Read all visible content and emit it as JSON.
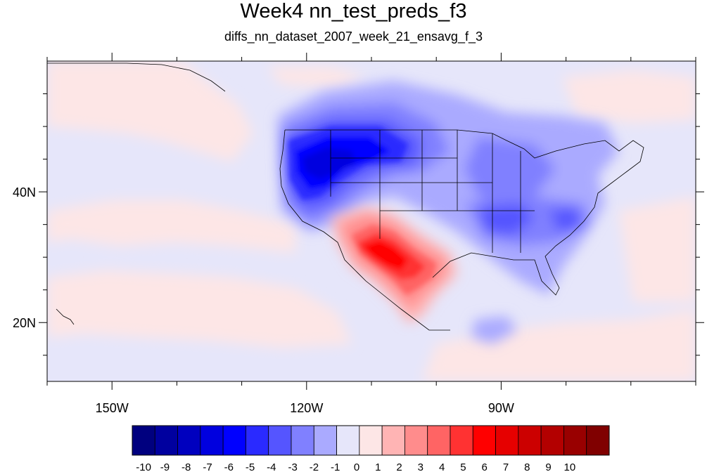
{
  "title": "Week4 nn_test_preds_f3",
  "subtitle": "diffs_nn_dataset_2007_week_21_ensavg_f_3",
  "map": {
    "lon_range": [
      -160,
      -60
    ],
    "lat_range": [
      11,
      60
    ],
    "lon_labels": [
      {
        "lon": -150,
        "text": "150W"
      },
      {
        "lon": -120,
        "text": "120W"
      },
      {
        "lon": -90,
        "text": "90W"
      }
    ],
    "lat_labels": [
      {
        "lat": 40,
        "text": "40N"
      },
      {
        "lat": 20,
        "text": "20N"
      }
    ],
    "background_color": "#e6e6fa",
    "ocean_warm_color": "#fde6e6"
  },
  "colorbar": {
    "labels": [
      "-10",
      "-9",
      "-8",
      "-7",
      "-6",
      "-5",
      "-4",
      "-3",
      "-2",
      "-1",
      "0",
      "1",
      "2",
      "3",
      "4",
      "5",
      "6",
      "7",
      "8",
      "9",
      "10"
    ],
    "colors": [
      "#00007f",
      "#00009f",
      "#0000bf",
      "#0000df",
      "#0000ff",
      "#2a2aff",
      "#5555ff",
      "#8080ff",
      "#aaaaff",
      "#e6e6fa",
      "#fde6e6",
      "#ffb4b4",
      "#ff8c8c",
      "#ff6464",
      "#ff3232",
      "#ff0000",
      "#e60000",
      "#cc0000",
      "#b30000",
      "#990000",
      "#800000"
    ]
  }
}
